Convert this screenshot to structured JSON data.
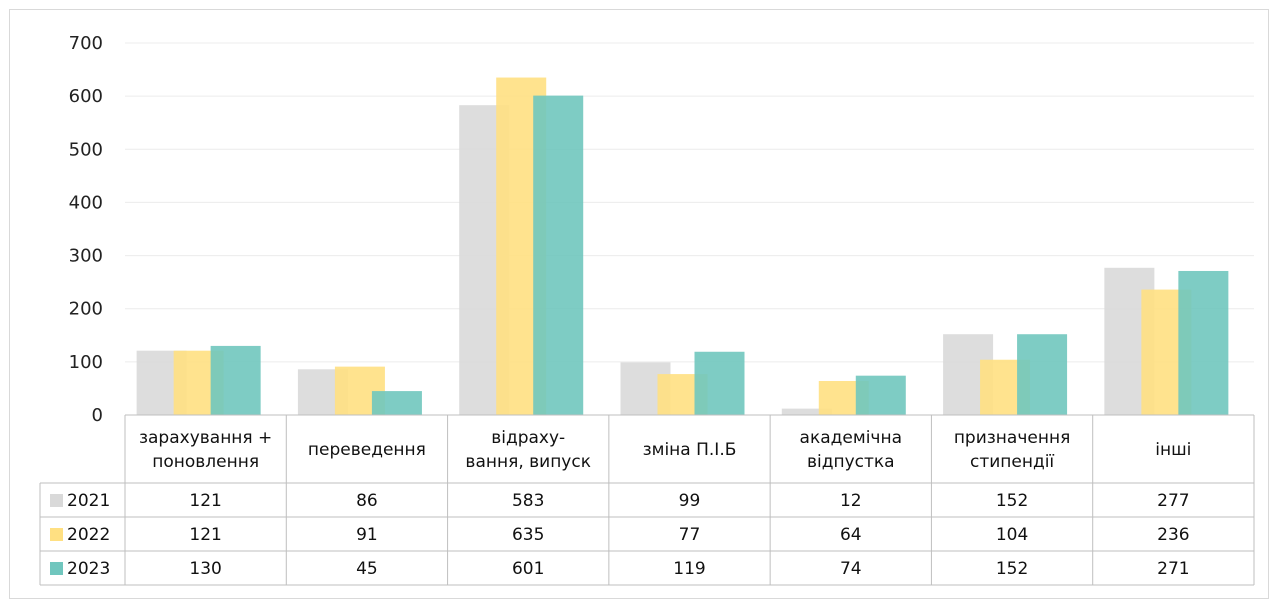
{
  "chart_data": {
    "type": "bar",
    "categories": [
      [
        "зарахування +",
        "поновлення"
      ],
      [
        "переведення"
      ],
      [
        "відраху-",
        "вання, випуск"
      ],
      [
        "зміна П.І.Б"
      ],
      [
        "академічна",
        "відпустка"
      ],
      [
        "призначення",
        "стипендії"
      ],
      [
        "інші"
      ]
    ],
    "series": [
      {
        "name": "2021",
        "color": "#d9d9d9",
        "values": [
          121,
          86,
          583,
          99,
          12,
          152,
          277
        ]
      },
      {
        "name": "2022",
        "color": "#ffe082",
        "values": [
          121,
          91,
          635,
          77,
          64,
          104,
          236
        ]
      },
      {
        "name": "2023",
        "color": "#70c6be",
        "values": [
          130,
          45,
          601,
          119,
          74,
          152,
          271
        ]
      }
    ],
    "yticks": [
      0,
      100,
      200,
      300,
      400,
      500,
      600,
      700
    ],
    "ylim": [
      0,
      700
    ],
    "grid": true,
    "legend": "data-table"
  }
}
